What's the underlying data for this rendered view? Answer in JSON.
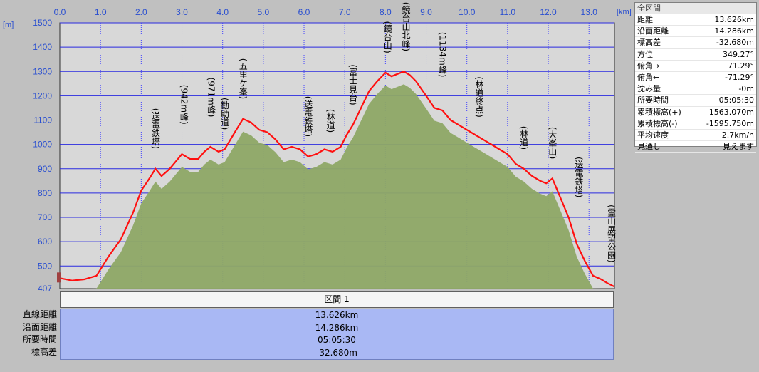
{
  "chart_data": {
    "type": "area",
    "xlabel": "[km]",
    "ylabel": "[m]",
    "xlim": [
      0,
      13.626
    ],
    "ylim": [
      407,
      1500
    ],
    "xticks": [
      "0.0",
      "1.0",
      "2.0",
      "3.0",
      "4.0",
      "5.0",
      "6.0",
      "7.0",
      "8.0",
      "9.0",
      "10.0",
      "11.0",
      "12.0",
      "13.0"
    ],
    "yticks": [
      "1500",
      "1400",
      "1300",
      "1200",
      "1100",
      "1000",
      "900",
      "800",
      "700",
      "600",
      "500",
      "407"
    ],
    "grid": true,
    "series": [
      {
        "x": [
          0,
          0.3,
          0.6,
          0.9,
          1.2,
          1.5,
          1.8,
          2.0,
          2.2,
          2.35,
          2.5,
          2.7,
          3.0,
          3.2,
          3.4,
          3.55,
          3.7,
          3.9,
          4.05,
          4.3,
          4.5,
          4.7,
          4.9,
          5.1,
          5.3,
          5.5,
          5.7,
          5.9,
          6.1,
          6.3,
          6.5,
          6.7,
          6.9,
          7.05,
          7.2,
          7.4,
          7.6,
          7.8,
          8.0,
          8.15,
          8.3,
          8.45,
          8.6,
          8.75,
          9.0,
          9.2,
          9.4,
          9.6,
          9.8,
          10.0,
          10.2,
          10.4,
          10.6,
          10.8,
          11.0,
          11.2,
          11.4,
          11.6,
          11.8,
          11.95,
          12.1,
          12.3,
          12.5,
          12.7,
          12.9,
          13.1,
          13.3,
          13.45,
          13.626
        ],
        "values": [
          450,
          440,
          445,
          460,
          540,
          610,
          720,
          810,
          860,
          900,
          870,
          900,
          960,
          940,
          940,
          970,
          990,
          970,
          980,
          1050,
          1105,
          1090,
          1060,
          1050,
          1020,
          980,
          990,
          980,
          950,
          960,
          980,
          970,
          990,
          1040,
          1080,
          1150,
          1220,
          1260,
          1295,
          1280,
          1290,
          1300,
          1285,
          1260,
          1200,
          1150,
          1140,
          1100,
          1080,
          1060,
          1040,
          1020,
          1000,
          980,
          960,
          920,
          900,
          870,
          850,
          840,
          860,
          780,
          700,
          590,
          520,
          460,
          445,
          430,
          415
        ]
      }
    ],
    "waypoints": [
      {
        "label": "(送電鉄塔)",
        "km": 2.35,
        "elev": 900
      },
      {
        "label": "(942m峰)",
        "km": 3.05,
        "elev": 960
      },
      {
        "label": "(971m峰)",
        "km": 3.72,
        "elev": 990
      },
      {
        "label": "(勧助道)",
        "km": 4.05,
        "elev": 980
      },
      {
        "label": "(五里ケ峯)",
        "km": 4.5,
        "elev": 1105
      },
      {
        "label": "(送電鉄塔)",
        "km": 6.1,
        "elev": 950
      },
      {
        "label": "(林道)",
        "km": 6.65,
        "elev": 970
      },
      {
        "label": "(富士見台)",
        "km": 7.2,
        "elev": 1080
      },
      {
        "label": "(鏡台山)",
        "km": 8.05,
        "elev": 1295
      },
      {
        "label": "(鏡台山北峰)",
        "km": 8.5,
        "elev": 1300
      },
      {
        "label": "(1134m峰)",
        "km": 9.4,
        "elev": 1140
      },
      {
        "label": "(林道終点)",
        "km": 10.3,
        "elev": 1030
      },
      {
        "label": "(林道)",
        "km": 11.4,
        "elev": 900
      },
      {
        "label": "(大峯山)",
        "km": 12.1,
        "elev": 860
      },
      {
        "label": "(送電鉄塔)",
        "km": 12.75,
        "elev": 700
      },
      {
        "label": "(霊山展望公園)",
        "km": 13.55,
        "elev": 430
      }
    ]
  },
  "summary": {
    "title": "全区間",
    "rows": [
      {
        "key": "距離",
        "value": "13.626km"
      },
      {
        "key": "沿面距離",
        "value": "14.286km"
      },
      {
        "key": "標高差",
        "value": "-32.680m"
      },
      {
        "key": "方位",
        "value": "349.27°"
      },
      {
        "key": "俯角→",
        "value": "71.29°"
      },
      {
        "key": "俯角←",
        "value": "-71.29°"
      },
      {
        "key": "沈み量",
        "value": "-0m"
      },
      {
        "key": "所要時間",
        "value": "05:05:30"
      },
      {
        "key": "累積標高(+)",
        "value": "1563.070m"
      },
      {
        "key": "累積標高(-)",
        "value": "-1595.750m"
      },
      {
        "key": "平均速度",
        "value": "2.7km/h"
      },
      {
        "key": "見通し",
        "value": "見えます"
      }
    ]
  },
  "section": {
    "header": "区間 1",
    "labels": [
      "直線距離",
      "沿面距離",
      "所要時間",
      "標高差"
    ],
    "values": [
      "13.626km",
      "14.286km",
      "05:05:30",
      "-32.680m"
    ]
  },
  "colors": {
    "plot_bg": "#d8d8d8",
    "grid_h": "#2a2ae0",
    "grid_v": "#4040ff",
    "profile_fill": "#8ea866",
    "profile_line": "#ff1010",
    "axis_text": "#2a4fd0"
  }
}
